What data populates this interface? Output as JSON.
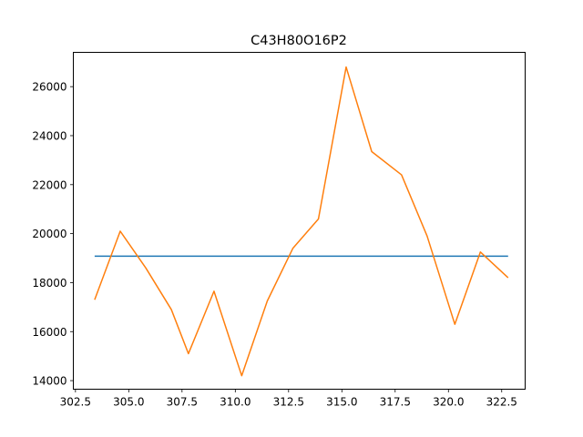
{
  "chart_data": {
    "type": "line",
    "title": "C43H80O16P2",
    "xlabel": "",
    "ylabel": "",
    "xlim": [
      302.4,
      323.6
    ],
    "ylim": [
      13650,
      27400
    ],
    "grid": false,
    "x_ticks": [
      "302.5",
      "305.0",
      "307.5",
      "310.0",
      "312.5",
      "315.0",
      "317.5",
      "320.0",
      "322.5"
    ],
    "x_tick_values": [
      302.5,
      305.0,
      307.5,
      310.0,
      312.5,
      315.0,
      317.5,
      320.0,
      322.5
    ],
    "y_ticks": [
      "14000",
      "16000",
      "18000",
      "20000",
      "22000",
      "24000",
      "26000"
    ],
    "y_tick_values": [
      14000,
      16000,
      18000,
      20000,
      22000,
      24000,
      26000
    ],
    "series": [
      {
        "color": "#1f77b4",
        "x": [
          303.4,
          322.8
        ],
        "y": [
          19080,
          19080
        ]
      },
      {
        "color": "#ff7f0e",
        "x": [
          303.4,
          304.6,
          305.8,
          307.0,
          307.8,
          309.0,
          310.3,
          311.5,
          312.7,
          313.9,
          315.2,
          316.4,
          317.8,
          319.0,
          320.3,
          321.5,
          322.8
        ],
        "y": [
          17300,
          20100,
          18600,
          16900,
          15100,
          17650,
          14200,
          17250,
          19400,
          20600,
          26800,
          23350,
          22400,
          19900,
          16300,
          19250,
          18200
        ]
      }
    ]
  }
}
